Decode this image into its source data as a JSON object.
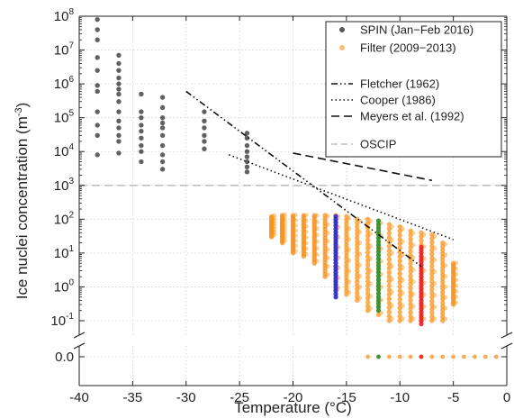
{
  "chart_data": {
    "type": "scatter",
    "xlabel": "Temperature (°C)",
    "ylabel": "Ice nuclei concentration (m",
    "ylabel_unit": "-3",
    "ylabel_close": ")",
    "xlim": [
      -40,
      0
    ],
    "ylim": [
      0.03,
      100000000
    ],
    "y_scale": "log",
    "y_axis_break": true,
    "y_zero_label": "0.0",
    "grid": true,
    "legend_position": "top-right",
    "x_ticks": [
      {
        "v": -40,
        "label": "-40"
      },
      {
        "v": -35,
        "label": "-35"
      },
      {
        "v": -30,
        "label": "-30"
      },
      {
        "v": -25,
        "label": "-25"
      },
      {
        "v": -20,
        "label": "-20"
      },
      {
        "v": -15,
        "label": "-15"
      },
      {
        "v": -10,
        "label": "-10"
      },
      {
        "v": -5,
        "label": "-5"
      },
      {
        "v": 0,
        "label": "0"
      }
    ],
    "y_ticks": [
      {
        "exp": -1,
        "label": "10",
        "sup": "-1"
      },
      {
        "exp": 0,
        "label": "10",
        "sup": "0"
      },
      {
        "exp": 1,
        "label": "10",
        "sup": "1"
      },
      {
        "exp": 2,
        "label": "10",
        "sup": "2"
      },
      {
        "exp": 3,
        "label": "10",
        "sup": "3"
      },
      {
        "exp": 4,
        "label": "10",
        "sup": "4"
      },
      {
        "exp": 5,
        "label": "10",
        "sup": "5"
      },
      {
        "exp": 6,
        "label": "10",
        "sup": "6"
      },
      {
        "exp": 7,
        "label": "10",
        "sup": "7"
      },
      {
        "exp": 8,
        "label": "10",
        "sup": "8"
      }
    ],
    "series": [
      {
        "name": "SPIN (Jan−Feb 2016)",
        "kind": "points",
        "color": "#3a3a3a",
        "points": [
          [
            -38.3,
            80000000
          ],
          [
            -38.3,
            40000000
          ],
          [
            -38.3,
            20000000
          ],
          [
            -38.3,
            6000000
          ],
          [
            -38.3,
            2500000
          ],
          [
            -38.3,
            900000
          ],
          [
            -38.3,
            600000
          ],
          [
            -38.3,
            150000
          ],
          [
            -38.3,
            60000
          ],
          [
            -38.3,
            30000
          ],
          [
            -38.3,
            8000
          ],
          [
            -36.3,
            7000000
          ],
          [
            -36.3,
            4000000
          ],
          [
            -36.3,
            2500000
          ],
          [
            -36.3,
            1500000
          ],
          [
            -36.3,
            1000000
          ],
          [
            -36.3,
            700000
          ],
          [
            -36.3,
            500000
          ],
          [
            -36.3,
            300000
          ],
          [
            -36.3,
            150000
          ],
          [
            -36.3,
            80000
          ],
          [
            -36.3,
            50000
          ],
          [
            -36.3,
            30000
          ],
          [
            -36.3,
            20000
          ],
          [
            -36.3,
            9000
          ],
          [
            -34.2,
            500000
          ],
          [
            -34.2,
            150000
          ],
          [
            -34.2,
            100000
          ],
          [
            -34.2,
            60000
          ],
          [
            -34.2,
            40000
          ],
          [
            -34.2,
            25000
          ],
          [
            -34.2,
            15000
          ],
          [
            -34.2,
            10000
          ],
          [
            -34.2,
            5000
          ],
          [
            -32.2,
            400000
          ],
          [
            -32.2,
            200000
          ],
          [
            -32.2,
            100000
          ],
          [
            -32.2,
            70000
          ],
          [
            -32.2,
            50000
          ],
          [
            -32.2,
            30000
          ],
          [
            -32.2,
            15000
          ],
          [
            -32.2,
            8000
          ],
          [
            -32.2,
            5000
          ],
          [
            -32.2,
            3000
          ],
          [
            -28.3,
            150000
          ],
          [
            -28.3,
            80000
          ],
          [
            -28.3,
            50000
          ],
          [
            -28.3,
            30000
          ],
          [
            -28.3,
            20000
          ],
          [
            -28.3,
            12000
          ],
          [
            -24.3,
            35000
          ],
          [
            -24.3,
            25000
          ],
          [
            -24.3,
            15000
          ],
          [
            -24.3,
            10000
          ],
          [
            -24.3,
            7000
          ],
          [
            -24.3,
            5000
          ],
          [
            -24.3,
            3500
          ],
          [
            -24.3,
            2500
          ]
        ]
      },
      {
        "name": "Filter (2009−2013)",
        "kind": "columns",
        "color": "#f7941d",
        "columns": [
          {
            "t": -22.0,
            "min": 30,
            "max": 120
          },
          {
            "t": -21.0,
            "min": 20,
            "max": 130
          },
          {
            "t": -20.0,
            "min": 10,
            "max": 130
          },
          {
            "t": -19.0,
            "min": 8,
            "max": 130
          },
          {
            "t": -18.0,
            "min": 5,
            "max": 130
          },
          {
            "t": -17.0,
            "min": 2,
            "max": 130
          },
          {
            "t": -16.0,
            "min": 0.8,
            "max": 130
          },
          {
            "t": -15.0,
            "min": 0.6,
            "max": 120
          },
          {
            "t": -14.0,
            "min": 0.4,
            "max": 100
          },
          {
            "t": -13.0,
            "min": 0.2,
            "max": 100
          },
          {
            "t": -12.0,
            "min": 0.15,
            "max": 90
          },
          {
            "t": -11.0,
            "min": 0.1,
            "max": 70
          },
          {
            "t": -10.0,
            "min": 0.1,
            "max": 60
          },
          {
            "t": -9.0,
            "min": 0.1,
            "max": 45
          },
          {
            "t": -8.0,
            "min": 0.1,
            "max": 40
          },
          {
            "t": -7.0,
            "min": 0.1,
            "max": 35
          },
          {
            "t": -6.0,
            "min": 0.1,
            "max": 20
          },
          {
            "t": -5.0,
            "min": 0.3,
            "max": 5
          }
        ],
        "zeros": [
          -13,
          -12,
          -11,
          -10,
          -9,
          -8,
          -7,
          -6,
          -5,
          -4,
          -3,
          -2,
          -1
        ]
      },
      {
        "name": "",
        "kind": "column",
        "color": "#2a2ad8",
        "t": -16.0,
        "min": 0.5,
        "max": 120
      },
      {
        "name": "",
        "kind": "column",
        "color": "#2c8f3a",
        "t": -12.0,
        "min": 0.2,
        "max": 90,
        "zero": true
      },
      {
        "name": "",
        "kind": "column",
        "color": "#e8232a",
        "t": -8.0,
        "min": 0.08,
        "max": 15,
        "zero": true
      },
      {
        "name": "Fletcher (1962)",
        "kind": "line",
        "style": "dashdotdot",
        "color": "#111111",
        "points": [
          [
            -30,
            600000
          ],
          [
            -8,
            4
          ]
        ]
      },
      {
        "name": "Cooper (1986)",
        "kind": "line",
        "style": "dotted",
        "color": "#111111",
        "points": [
          [
            -26,
            8000
          ],
          [
            -5,
            25
          ]
        ]
      },
      {
        "name": "Meyers et al. (1992)",
        "kind": "line",
        "style": "dashed",
        "color": "#111111",
        "points": [
          [
            -20,
            9000
          ],
          [
            -7,
            1400
          ]
        ]
      },
      {
        "name": "OSCIP",
        "kind": "hline",
        "style": "dashed",
        "color": "#c0c0c0",
        "y": 1000
      }
    ]
  }
}
